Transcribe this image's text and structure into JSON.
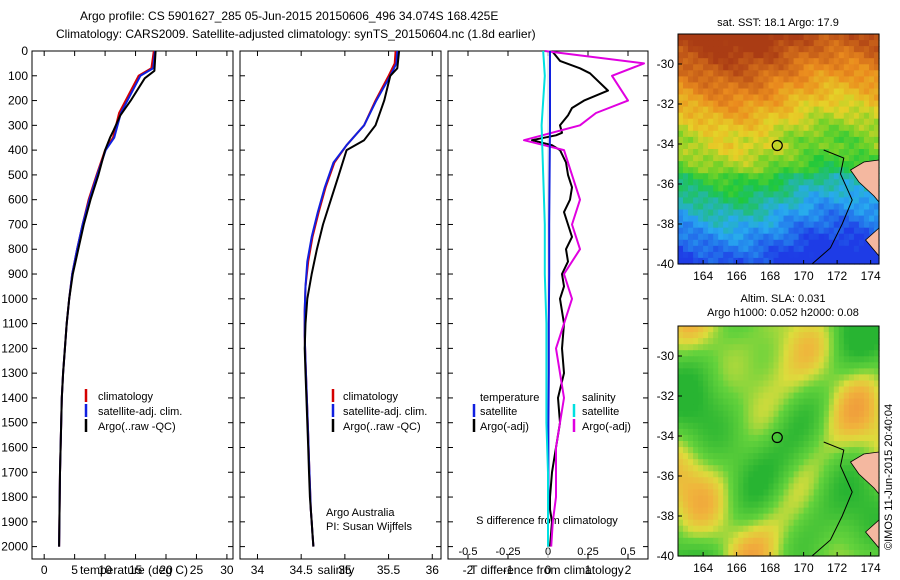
{
  "header": {
    "line1": "Argo profile: CS 5901627_285 05-Jun-2015 20150606_496 34.074S 168.425E",
    "line2": "Climatology: CARS2009. Satellite-adjusted climatology: synTS_20150604.nc (1.8d earlier)"
  },
  "colors": {
    "red": "#d40000",
    "blue": "#1020e0",
    "black": "#000000",
    "cyan": "#00e0e0",
    "magenta": "#e000e0"
  },
  "chart_data": [
    {
      "type": "line",
      "xlabel": "temperature (deg C)",
      "xlim": [
        -2,
        31
      ],
      "ylim": [
        0,
        2050
      ],
      "xticks": [
        "0",
        "5",
        "10",
        "15",
        "20",
        "25",
        "30"
      ],
      "yticks": [
        "0",
        "100",
        "200",
        "300",
        "400",
        "500",
        "600",
        "700",
        "800",
        "900",
        "1000",
        "1100",
        "1200",
        "1300",
        "1400",
        "1500",
        "1600",
        "1700",
        "1800",
        "1900",
        "2000"
      ],
      "legend": [
        "climatology",
        "satellite-adj. clim.",
        "Argo(..raw -QC)"
      ],
      "series": [
        {
          "name": "climatology",
          "color": "red",
          "x": [
            18,
            17.6,
            15.5,
            12.3,
            11.3,
            10,
            8.6,
            7.3,
            6.3,
            5.4,
            4.6,
            4.1,
            3.7,
            3.4,
            3.1,
            2.9,
            2.8,
            2.7,
            2.6,
            2.55,
            2.5,
            2.45
          ],
          "y": [
            0,
            70,
            100,
            250,
            350,
            400,
            500,
            600,
            700,
            800,
            900,
            1000,
            1100,
            1200,
            1300,
            1400,
            1500,
            1600,
            1700,
            1800,
            1900,
            2000
          ]
        },
        {
          "name": "satellite-adj. clim.",
          "color": "blue",
          "x": [
            18.2,
            17.9,
            15.8,
            12.6,
            11.5,
            10.1,
            8.7,
            7.4,
            6.3,
            5.4,
            4.6,
            4.1,
            3.7,
            3.4,
            3.1,
            2.9,
            2.8,
            2.7,
            2.6,
            2.55,
            2.5,
            2.45
          ],
          "y": [
            0,
            70,
            100,
            250,
            350,
            400,
            500,
            600,
            700,
            800,
            900,
            1000,
            1100,
            1200,
            1300,
            1400,
            1500,
            1600,
            1700,
            1800,
            1900,
            2000
          ]
        },
        {
          "name": "Argo(..raw -QC)",
          "color": "black",
          "x": [
            18.3,
            18.1,
            16.5,
            14.2,
            12.5,
            11.4,
            10.8,
            10,
            8.9,
            7.6,
            6.5,
            5.6,
            4.7,
            4.1,
            3.7,
            3.4,
            3.1,
            2.9,
            2.8,
            2.7,
            2.6,
            2.55,
            2.5,
            2.45
          ],
          "y": [
            0,
            80,
            110,
            200,
            260,
            320,
            350,
            400,
            500,
            600,
            700,
            800,
            900,
            1000,
            1100,
            1200,
            1300,
            1400,
            1500,
            1600,
            1700,
            1800,
            1900,
            2000
          ]
        }
      ]
    },
    {
      "type": "line",
      "xlabel": "salinity",
      "xlim": [
        33.8,
        36.1
      ],
      "ylim": [
        0,
        2050
      ],
      "xticks": [
        "34",
        "34.5",
        "35",
        "35.5",
        "36"
      ],
      "legend": [
        "climatology",
        "satellite-adj. clim.",
        "Argo(..raw -QC)"
      ],
      "annotation": [
        "Argo Australia",
        "PI: Susan Wijffels"
      ],
      "series": [
        {
          "name": "climatology",
          "color": "red",
          "x": [
            35.58,
            35.57,
            35.5,
            35.35,
            35.22,
            35.02,
            34.88,
            34.78,
            34.7,
            34.63,
            34.58,
            34.55,
            34.54,
            34.54,
            34.55,
            34.56,
            34.57,
            34.58,
            34.59,
            34.6,
            34.61,
            34.62,
            34.63,
            34.64
          ],
          "y": [
            0,
            50,
            100,
            200,
            300,
            380,
            450,
            550,
            650,
            750,
            850,
            950,
            1050,
            1150,
            1250,
            1350,
            1450,
            1550,
            1650,
            1750,
            1850,
            1900,
            1950,
            2000
          ]
        },
        {
          "name": "satellite-adj. clim.",
          "color": "blue",
          "x": [
            35.6,
            35.59,
            35.52,
            35.36,
            35.22,
            35.02,
            34.87,
            34.77,
            34.69,
            34.62,
            34.57,
            34.55,
            34.54,
            34.54,
            34.55,
            34.56,
            34.57,
            34.58,
            34.59,
            34.6,
            34.61,
            34.62,
            34.63,
            34.64
          ],
          "y": [
            0,
            50,
            100,
            200,
            300,
            380,
            450,
            550,
            650,
            750,
            850,
            950,
            1050,
            1150,
            1250,
            1350,
            1450,
            1550,
            1650,
            1750,
            1850,
            1900,
            1950,
            2000
          ]
        },
        {
          "name": "Argo(..raw -QC)",
          "color": "black",
          "x": [
            35.62,
            35.6,
            35.52,
            35.45,
            35.35,
            35.22,
            35.02,
            34.93,
            34.84,
            34.75,
            34.68,
            34.62,
            34.57,
            34.55,
            34.54,
            34.55,
            34.56,
            34.57,
            34.58,
            34.59,
            34.6,
            34.62,
            34.63,
            34.64
          ],
          "y": [
            0,
            70,
            100,
            200,
            300,
            360,
            400,
            500,
            600,
            700,
            800,
            900,
            1000,
            1100,
            1200,
            1300,
            1400,
            1500,
            1600,
            1700,
            1800,
            1900,
            1950,
            2000
          ]
        }
      ]
    },
    {
      "type": "line",
      "xlabel": "T difference from climatology",
      "xlabel_top": "S difference from climatology",
      "xlim": [
        -2.5,
        2.5
      ],
      "ylim": [
        0,
        2050
      ],
      "xticks": [
        "-2",
        "-1",
        "0",
        "1",
        "2"
      ],
      "xticks_s": [
        "-0.5",
        "-0.25",
        "0",
        "0.25",
        "0.5"
      ],
      "legend_left_title": "temperature",
      "legend_right_title": "salinity",
      "legend": [
        "satellite",
        "Argo(-adj)",
        "satellite",
        "Argo(-adj)"
      ],
      "series": [
        {
          "name": "satellite",
          "color": "blue",
          "x": [
            0.05,
            0.05,
            0.05,
            0.04,
            0.03,
            0.03,
            0.02,
            0.02,
            0.01,
            0.01,
            0.01,
            0,
            0
          ],
          "y": [
            0,
            100,
            300,
            500,
            700,
            900,
            1100,
            1300,
            1500,
            1700,
            1800,
            1900,
            2000
          ]
        },
        {
          "name": "Argo(-adj)",
          "color": "black",
          "x": [
            0.1,
            0.3,
            0.8,
            1.05,
            1.5,
            0.9,
            0.6,
            0.5,
            0.3,
            0.35,
            0.2,
            -0.4,
            0.1,
            0.3,
            0.45,
            0.5,
            0.6,
            0.55,
            0.4,
            0.5,
            0.6,
            0.45,
            0.5,
            0.35,
            0.4,
            0.3,
            0.4,
            0.35,
            0.4,
            0.25,
            0.3,
            0.2,
            0.1,
            0.05,
            0.05,
            0.1,
            0.05
          ],
          "y": [
            0,
            40,
            70,
            90,
            160,
            200,
            230,
            260,
            300,
            330,
            340,
            360,
            380,
            400,
            450,
            500,
            550,
            600,
            650,
            700,
            750,
            800,
            850,
            900,
            950,
            1000,
            1100,
            1200,
            1300,
            1400,
            1500,
            1600,
            1700,
            1800,
            1850,
            1900,
            2000
          ]
        },
        {
          "name": "satellite",
          "color": "cyan",
          "x": [
            -0.03,
            -0.02,
            -0.04,
            -0.03,
            -0.02,
            -0.02,
            -0.01,
            -0.01,
            -0.01,
            0,
            0,
            0,
            0
          ],
          "y": [
            0,
            100,
            300,
            500,
            700,
            900,
            1100,
            1300,
            1500,
            1700,
            1800,
            1900,
            2000
          ]
        },
        {
          "name": "Argo(-adj)",
          "color": "magenta",
          "x": [
            -0.02,
            0.6,
            0.4,
            0.5,
            0.3,
            0.2,
            -0.15,
            0.1,
            0.15,
            0.2,
            0.15,
            0.2,
            0.1,
            0.15,
            0.05,
            0.1,
            0.05,
            0.05,
            0.03,
            0.02
          ],
          "y": [
            0,
            50,
            100,
            200,
            250,
            300,
            360,
            400,
            500,
            600,
            700,
            800,
            900,
            1000,
            1200,
            1400,
            1600,
            1800,
            1900,
            2000
          ]
        }
      ]
    },
    {
      "type": "heatmap",
      "title": "sat. SST: 18.1  Argo: 17.9",
      "xticks": [
        "164",
        "166",
        "168",
        "170",
        "172",
        "174"
      ],
      "yticks": [
        "-30",
        "-32",
        "-34",
        "-36",
        "-38",
        "-40"
      ]
    },
    {
      "type": "heatmap",
      "title": "Altim. SLA: 0.031",
      "subtitle": "Argo h1000: 0.052 h2000: 0.08",
      "xticks": [
        "164",
        "166",
        "168",
        "170",
        "172",
        "174"
      ],
      "yticks": [
        "-30",
        "-32",
        "-34",
        "-36",
        "-38",
        "-40"
      ]
    }
  ],
  "footer": {
    "stamp": "©IMOS 11-Jun-2015 20:40:04"
  }
}
